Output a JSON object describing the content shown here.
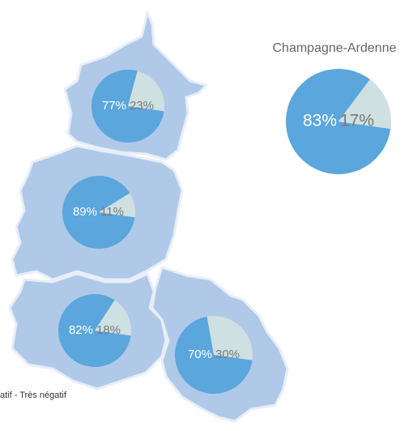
{
  "chart_data": [
    {
      "type": "pie",
      "title": "Champagne-Ardenne",
      "values": [
        83,
        17
      ],
      "value_labels": [
        "83%",
        "17%"
      ],
      "colors": [
        "#5aa6dd",
        "#cfe0e2"
      ]
    },
    {
      "type": "pie",
      "values": [
        77,
        23
      ],
      "value_labels": [
        "77%",
        "23%"
      ],
      "colors": [
        "#5aa6dd",
        "#cfe0e2"
      ]
    },
    {
      "type": "pie",
      "values": [
        89,
        11
      ],
      "value_labels": [
        "89%",
        "11%"
      ],
      "colors": [
        "#5aa6dd",
        "#cfe0e2"
      ]
    },
    {
      "type": "pie",
      "values": [
        82,
        18
      ],
      "value_labels": [
        "82%",
        "18%"
      ],
      "colors": [
        "#5aa6dd",
        "#cfe0e2"
      ]
    },
    {
      "type": "pie",
      "values": [
        70,
        30
      ],
      "value_labels": [
        "70%",
        "30%"
      ],
      "colors": [
        "#5aa6dd",
        "#cfe0e2"
      ]
    }
  ],
  "legend": {
    "text": "atif  - Très négatif"
  }
}
